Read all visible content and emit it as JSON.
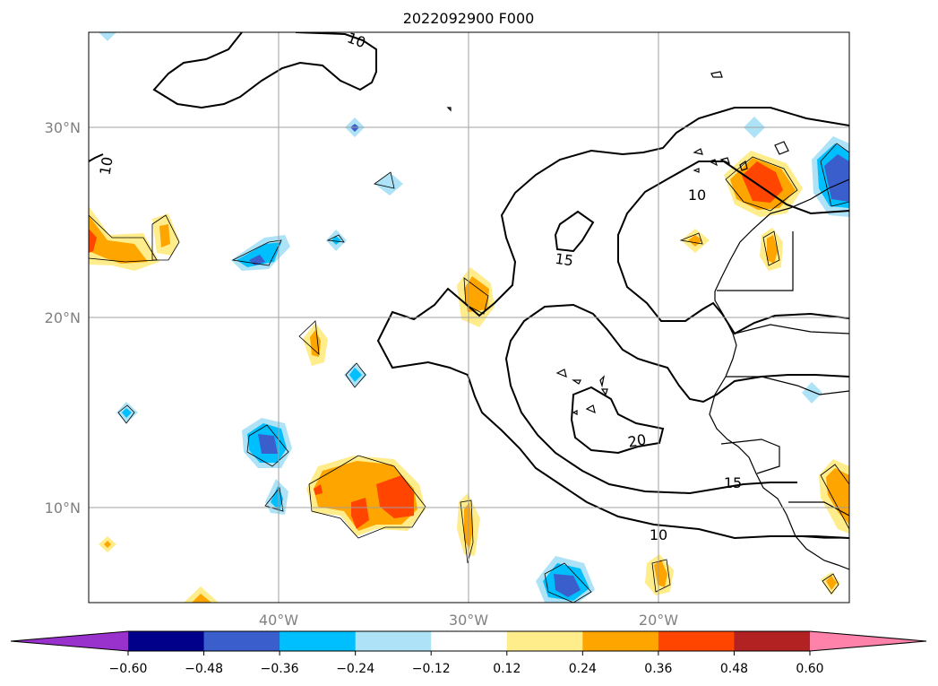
{
  "title": "2022092900 F000",
  "map": {
    "lon_range": [
      -50,
      -10
    ],
    "lat_range": [
      5,
      35
    ],
    "lat_ticks": [
      {
        "value": 30,
        "label": "30°N"
      },
      {
        "value": 20,
        "label": "20°N"
      },
      {
        "value": 10,
        "label": "10°N"
      }
    ],
    "lon_ticks": [
      {
        "value": -40,
        "label": "40°W"
      },
      {
        "value": -30,
        "label": "30°W"
      },
      {
        "value": -20,
        "label": "20°W"
      }
    ],
    "gridlines": true,
    "contour_labels": [
      "10",
      "10",
      "10",
      "15",
      "20",
      "15",
      "10"
    ]
  },
  "colorbar": {
    "ticks": [
      "−0.60",
      "−0.48",
      "−0.36",
      "−0.24",
      "−0.12",
      "0.12",
      "0.24",
      "0.36",
      "0.48",
      "0.60"
    ],
    "colors": {
      "under": "#9932cc",
      "bins": [
        "#00008b",
        "#3a5fcd",
        "#00bfff",
        "#aee3f7",
        "#ffffff",
        "#ffec8b",
        "#ffa500",
        "#ff4500",
        "#b22222"
      ],
      "over": "#ff82ab"
    }
  }
}
